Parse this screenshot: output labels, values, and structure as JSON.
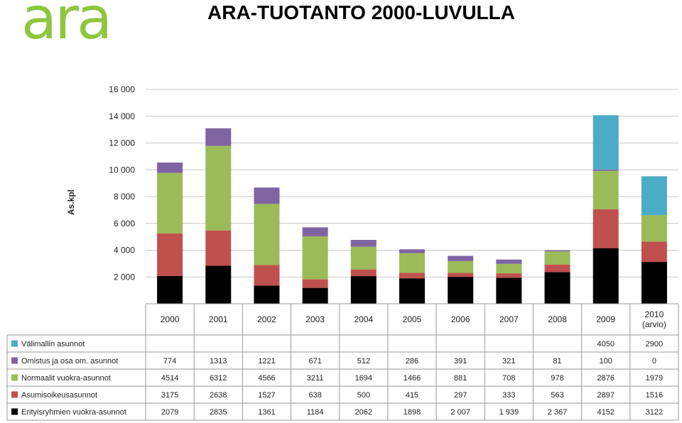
{
  "logo": "ara",
  "title": "ARA-TUOTANTO 2000-LUVULLA",
  "chart_data": {
    "type": "bar",
    "stacked": true,
    "ylabel": "As.kpl",
    "ylim": [
      0,
      16000
    ],
    "yticks": [
      "2 000",
      "4 000",
      "6 000",
      "8 000",
      "10 000",
      "12 000",
      "14 000",
      "16 000"
    ],
    "ytick_values": [
      2000,
      4000,
      6000,
      8000,
      10000,
      12000,
      14000,
      16000
    ],
    "grid": true,
    "categories": [
      "2000",
      "2001",
      "2002",
      "2003",
      "2004",
      "2005",
      "2006",
      "2007",
      "2008",
      "2009",
      "2010 (arvio)"
    ],
    "category_lines": [
      [
        "2000"
      ],
      [
        "2001"
      ],
      [
        "2002"
      ],
      [
        "2003"
      ],
      [
        "2004"
      ],
      [
        "2005"
      ],
      [
        "2006"
      ],
      [
        "2007"
      ],
      [
        "2008"
      ],
      [
        "2009"
      ],
      [
        "2010",
        "(arvio)"
      ]
    ],
    "series": [
      {
        "name": "Erityisryhmien vuokra-asunnot",
        "color": "#000000",
        "values": [
          2079,
          2835,
          1361,
          1184,
          2062,
          1898,
          2007,
          1939,
          2367,
          4152,
          3122
        ],
        "labels": [
          "2079",
          "2835",
          "1361",
          "1184",
          "2062",
          "1898",
          "2 007",
          "1 939",
          "2 367",
          "4152",
          "3122"
        ]
      },
      {
        "name": "Asumisoikeusasunnot",
        "color": "#c0504d",
        "values": [
          3175,
          2638,
          1527,
          638,
          500,
          415,
          297,
          333,
          563,
          2897,
          1516
        ],
        "labels": [
          "3175",
          "2638",
          "1527",
          "638",
          "500",
          "415",
          "297",
          "333",
          "563",
          "2897",
          "1516"
        ]
      },
      {
        "name": "Normaalit vuokra-asunnot",
        "color": "#9bbb59",
        "values": [
          4514,
          6312,
          4566,
          3211,
          1694,
          1466,
          881,
          708,
          978,
          2876,
          1979
        ],
        "labels": [
          "4514",
          "6312",
          "4566",
          "3211",
          "1694",
          "1466",
          "881",
          "708",
          "978",
          "2876",
          "1979"
        ]
      },
      {
        "name": "Omistus ja osa om. asunnot",
        "color": "#8064a2",
        "values": [
          774,
          1313,
          1221,
          671,
          512,
          286,
          391,
          321,
          81,
          100,
          0
        ],
        "labels": [
          "774",
          "1313",
          "1221",
          "671",
          "512",
          "286",
          "391",
          "321",
          "81",
          "100",
          "0"
        ]
      },
      {
        "name": "Välimallin asunnot",
        "color": "#4bacc6",
        "values": [
          0,
          0,
          0,
          0,
          0,
          0,
          0,
          0,
          0,
          4050,
          2900
        ],
        "labels": [
          "",
          "",
          "",
          "",
          "",
          "",
          "",
          "",
          "",
          "4050",
          "2900"
        ]
      }
    ],
    "table_row_order": [
      "Välimallin asunnot",
      "Omistus ja osa om. asunnot",
      "Normaalit vuokra-asunnot",
      "Asumisoikeusasunnot",
      "Erityisryhmien vuokra-asunnot"
    ],
    "legend": "table-left"
  }
}
